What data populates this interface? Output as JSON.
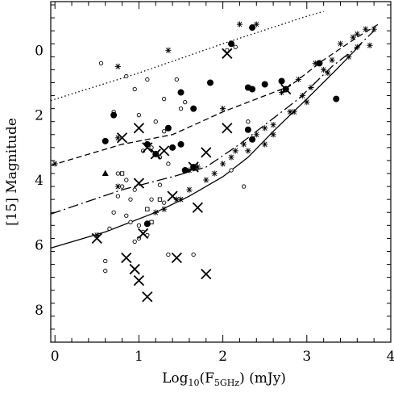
{
  "chart_data": {
    "type": "scatter",
    "xlabel_main": "Log",
    "xlabel_sub": "10",
    "xlabel_paren_open": "(F",
    "xlabel_freq": "5GHz",
    "xlabel_unit": ") (mJy)",
    "ylabel": "[15] Magnitude",
    "xlim": [
      -0.05,
      4.0
    ],
    "ylim": [
      9.0,
      -1.5
    ],
    "y_inverted": true,
    "grid": false,
    "legend": "none",
    "x_ticks": [
      0,
      1,
      2,
      3,
      4
    ],
    "y_ticks": [
      0,
      2,
      4,
      6,
      8
    ],
    "series": [
      {
        "marker": "open-circle",
        "points": [
          [
            0.55,
            0.4
          ],
          [
            0.85,
            0.8
          ],
          [
            0.95,
            1.2
          ],
          [
            1.1,
            0.9
          ],
          [
            1.3,
            1.5
          ],
          [
            1.45,
            0.9
          ],
          [
            1.55,
            1.6
          ],
          [
            1.5,
            1.8
          ],
          [
            0.7,
            1.9
          ],
          [
            1.0,
            2.0
          ],
          [
            1.2,
            2.2
          ],
          [
            1.3,
            2.5
          ],
          [
            1.05,
            3.1
          ],
          [
            1.15,
            3.0
          ],
          [
            1.25,
            3.3
          ],
          [
            1.35,
            3.5
          ],
          [
            0.75,
            3.8
          ],
          [
            0.85,
            4.0
          ],
          [
            0.8,
            4.2
          ],
          [
            0.95,
            4.3
          ],
          [
            0.75,
            4.5
          ],
          [
            0.9,
            4.6
          ],
          [
            1.15,
            4.6
          ],
          [
            1.3,
            4.7
          ],
          [
            0.7,
            5.0
          ],
          [
            0.85,
            5.1
          ],
          [
            0.9,
            5.3
          ],
          [
            1.0,
            5.4
          ],
          [
            1.05,
            5.6
          ],
          [
            1.1,
            5.7
          ],
          [
            0.95,
            5.9
          ],
          [
            1.0,
            5.8
          ],
          [
            0.65,
            5.5
          ],
          [
            0.6,
            6.5
          ],
          [
            0.6,
            6.8
          ],
          [
            1.35,
            6.3
          ],
          [
            1.65,
            6.3
          ],
          [
            2.1,
            3.7
          ],
          [
            2.25,
            4.2
          ],
          [
            2.05,
            0.0
          ],
          [
            2.15,
            -0.1
          ],
          [
            2.3,
            2.2
          ],
          [
            1.25,
            4.15
          ]
        ]
      },
      {
        "marker": "open-square",
        "points": [
          [
            0.8,
            3.8
          ],
          [
            1.1,
            4.9
          ],
          [
            1.15,
            5.3
          ],
          [
            1.25,
            4.6
          ]
        ]
      },
      {
        "marker": "filled-circle",
        "points": [
          [
            2.35,
            -0.7
          ],
          [
            2.1,
            -0.2
          ],
          [
            0.7,
            2.0
          ],
          [
            0.6,
            2.8
          ],
          [
            1.5,
            1.3
          ],
          [
            1.65,
            1.8
          ],
          [
            1.35,
            2.4
          ],
          [
            1.1,
            2.9
          ],
          [
            1.5,
            2.9
          ],
          [
            1.4,
            3.0
          ],
          [
            1.55,
            3.7
          ],
          [
            1.65,
            3.6
          ],
          [
            1.85,
            1.0
          ],
          [
            2.3,
            1.15
          ],
          [
            2.35,
            1.2
          ],
          [
            2.5,
            1.05
          ],
          [
            2.7,
            0.95
          ],
          [
            2.75,
            1.2
          ],
          [
            2.3,
            2.45
          ],
          [
            2.35,
            2.75
          ],
          [
            3.15,
            0.4
          ],
          [
            3.35,
            1.5
          ],
          [
            1.2,
            3.2
          ],
          [
            1.1,
            5.35
          ]
        ]
      },
      {
        "marker": "filled-triangle",
        "points": [
          [
            0.6,
            3.8
          ]
        ]
      },
      {
        "marker": "cross",
        "points": [
          [
            0.8,
            2.7
          ],
          [
            1.0,
            2.4
          ],
          [
            1.3,
            3.1
          ],
          [
            1.2,
            3.2
          ],
          [
            1.1,
            3.0
          ],
          [
            1.8,
            3.15
          ],
          [
            2.05,
            2.4
          ],
          [
            1.65,
            3.6
          ],
          [
            1.0,
            4.1
          ],
          [
            1.4,
            4.5
          ],
          [
            1.7,
            4.85
          ],
          [
            1.05,
            5.65
          ],
          [
            0.85,
            6.4
          ],
          [
            0.95,
            6.75
          ],
          [
            1.0,
            7.1
          ],
          [
            1.1,
            7.6
          ],
          [
            1.45,
            6.4
          ],
          [
            1.8,
            6.9
          ],
          [
            0.5,
            5.8
          ],
          [
            2.05,
            0.1
          ],
          [
            2.75,
            1.2
          ]
        ]
      },
      {
        "marker": "asterisk",
        "points": [
          [
            0.0,
            3.5
          ],
          [
            0.75,
            2.7
          ],
          [
            0.75,
            4.2
          ],
          [
            1.45,
            4.6
          ],
          [
            1.6,
            3.7
          ],
          [
            1.7,
            3.6
          ],
          [
            2.0,
            1.8
          ],
          [
            2.2,
            -0.8
          ],
          [
            0.75,
            0.5
          ],
          [
            1.35,
            0.0
          ],
          [
            2.3,
            3.1
          ],
          [
            2.6,
            2.6
          ],
          [
            2.5,
            2.9
          ],
          [
            2.85,
            1.9
          ],
          [
            3.0,
            1.6
          ],
          [
            3.2,
            0.6
          ],
          [
            3.3,
            0.3
          ],
          [
            3.6,
            -0.1
          ],
          [
            3.7,
            -0.65
          ],
          [
            3.8,
            -0.65
          ],
          [
            2.4,
            -0.8
          ],
          [
            0.5,
            5.7
          ],
          [
            1.2,
            5.0
          ],
          [
            1.6,
            4.3
          ],
          [
            1.9,
            3.8
          ],
          [
            2.1,
            3.3
          ],
          [
            2.25,
            2.9
          ],
          [
            2.5,
            2.4
          ],
          [
            2.8,
            1.9
          ],
          [
            2.95,
            1.4
          ],
          [
            3.05,
            1.15
          ],
          [
            3.25,
            0.7
          ],
          [
            3.5,
            0.2
          ],
          [
            3.75,
            -0.15
          ],
          [
            1.3,
            4.9
          ],
          [
            1.5,
            4.6
          ],
          [
            1.8,
            4.0
          ],
          [
            2.0,
            3.5
          ],
          [
            2.15,
            3.1
          ],
          [
            2.4,
            2.6
          ],
          [
            2.6,
            2.3
          ],
          [
            2.7,
            1.3
          ],
          [
            2.9,
            0.9
          ],
          [
            3.1,
            0.4
          ],
          [
            3.4,
            -0.2
          ],
          [
            3.55,
            -0.4
          ],
          [
            3.6,
            -0.5
          ]
        ]
      }
    ],
    "lines": [
      {
        "style": "dotted",
        "points": [
          [
            -0.05,
            1.55
          ],
          [
            1.0,
            0.7
          ],
          [
            2.0,
            -0.2
          ],
          [
            3.0,
            -1.05
          ],
          [
            3.2,
            -1.2
          ]
        ]
      },
      {
        "style": "dashed",
        "points": [
          [
            -0.05,
            3.55
          ],
          [
            0.8,
            2.9
          ],
          [
            1.4,
            2.6
          ],
          [
            2.0,
            1.9
          ],
          [
            2.5,
            1.4
          ],
          [
            2.8,
            1.1
          ],
          [
            3.2,
            0.3
          ],
          [
            3.6,
            -0.4
          ],
          [
            3.85,
            -0.8
          ]
        ]
      },
      {
        "style": "long-dash",
        "points": [
          [
            -0.05,
            5.05
          ],
          [
            0.8,
            4.3
          ],
          [
            1.4,
            3.9
          ],
          [
            1.8,
            3.6
          ],
          [
            2.2,
            2.9
          ],
          [
            2.5,
            2.3
          ],
          [
            2.9,
            1.5
          ],
          [
            3.3,
            0.5
          ],
          [
            3.6,
            -0.1
          ],
          [
            3.8,
            -0.6
          ]
        ]
      },
      {
        "style": "solid",
        "points": [
          [
            -0.05,
            6.1
          ],
          [
            0.6,
            5.6
          ],
          [
            1.2,
            5.0
          ],
          [
            1.6,
            4.5
          ],
          [
            2.0,
            3.9
          ],
          [
            2.3,
            3.3
          ],
          [
            2.6,
            2.5
          ],
          [
            3.0,
            1.5
          ],
          [
            3.35,
            0.6
          ],
          [
            3.65,
            -0.2
          ]
        ]
      }
    ]
  }
}
